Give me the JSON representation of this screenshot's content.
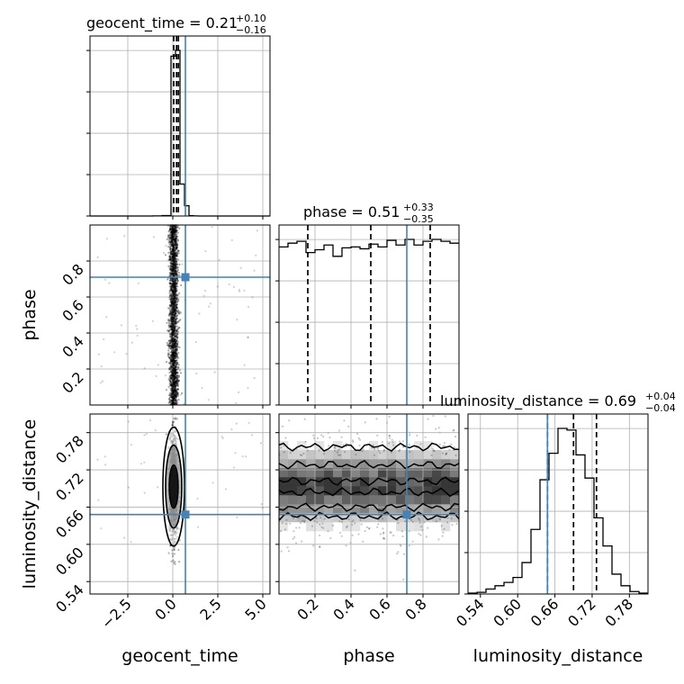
{
  "chart_data": {
    "type": "corner",
    "parameters": [
      "geocent_time",
      "phase",
      "luminosity_distance"
    ],
    "truths": {
      "geocent_time": 0.7,
      "phase": 0.71,
      "luminosity_distance": 0.648
    },
    "grid": true,
    "diagonal": [
      {
        "parameter": "geocent_time",
        "title_main": "geocent_time = 0.21",
        "title_plus": "+0.10",
        "title_minus": "−0.16",
        "xlim": [
          -4.6,
          5.4
        ],
        "quantiles": [
          0.05,
          0.21,
          0.31
        ],
        "hist": {
          "edges": [
            -4.6,
            -4.1,
            -3.6,
            -3.1,
            -2.6,
            -2.1,
            -1.6,
            -1.1,
            -0.6,
            -0.1,
            0.15,
            0.4,
            0.65,
            0.9,
            1.15,
            1.4,
            1.9,
            2.4,
            2.9,
            3.4,
            3.9,
            4.4,
            4.9,
            5.4
          ],
          "counts": [
            0,
            0,
            0,
            0,
            0,
            0,
            0,
            1,
            4,
            1400,
            1450,
            280,
            90,
            3,
            1,
            0,
            0,
            0,
            0,
            0,
            0,
            0,
            0
          ]
        }
      },
      {
        "parameter": "phase",
        "title_main": "phase = 0.51",
        "title_plus": "+0.33",
        "title_minus": "−0.35",
        "xlim": [
          0.0,
          1.0
        ],
        "quantiles": [
          0.16,
          0.51,
          0.84
        ],
        "hist": {
          "edges": [
            0.0,
            0.05,
            0.1,
            0.15,
            0.2,
            0.25,
            0.3,
            0.35,
            0.4,
            0.45,
            0.5,
            0.55,
            0.6,
            0.65,
            0.7,
            0.75,
            0.8,
            0.85,
            0.9,
            0.95,
            1.0
          ],
          "counts": [
            168,
            172,
            174,
            162,
            165,
            170,
            158,
            167,
            168,
            166,
            171,
            168,
            175,
            170,
            176,
            170,
            174,
            176,
            174,
            172
          ]
        }
      },
      {
        "parameter": "luminosity_distance",
        "title_main": "luminosity_distance = 0.69",
        "title_plus": "+0.04",
        "title_minus": "−0.04",
        "xlim": [
          0.52,
          0.81
        ],
        "quantiles": [
          0.648,
          0.69,
          0.727
        ],
        "hist": {
          "edges": [
            0.52,
            0.5345,
            0.549,
            0.5635,
            0.578,
            0.5925,
            0.607,
            0.6215,
            0.636,
            0.6505,
            0.665,
            0.6795,
            0.694,
            0.7085,
            0.723,
            0.7375,
            0.752,
            0.7665,
            0.781,
            0.7955,
            0.81
          ],
          "counts": [
            1,
            2,
            6,
            10,
            14,
            20,
            38,
            78,
            138,
            170,
            200,
            198,
            168,
            140,
            92,
            58,
            24,
            10,
            3,
            1
          ]
        }
      }
    ],
    "panels_2d": [
      {
        "x": "geocent_time",
        "y": "phase",
        "type": "scatter",
        "points_center_x": 0.05,
        "points_spread_x": 0.12,
        "y_range": [
          0.0,
          1.0
        ]
      },
      {
        "x": "geocent_time",
        "y": "luminosity_distance",
        "type": "scatter+contour",
        "center": [
          0.05,
          0.693
        ],
        "sigma": [
          0.12,
          0.04
        ]
      },
      {
        "x": "phase",
        "y": "luminosity_distance",
        "type": "hist2d+contour",
        "center_y": 0.693,
        "sigma_y": 0.04
      }
    ],
    "axes": {
      "geocent_time": {
        "xticks": [
          "−2.5",
          "0.0",
          "2.5",
          "5.0"
        ],
        "xtick_values": [
          -2.5,
          0.0,
          2.5,
          5.0
        ],
        "label": "geocent_time"
      },
      "phase": {
        "ticks": [
          "0.2",
          "0.4",
          "0.6",
          "0.8"
        ],
        "tick_values": [
          0.2,
          0.4,
          0.6,
          0.8
        ],
        "label": "phase"
      },
      "luminosity_distance": {
        "ticks": [
          "0.54",
          "0.60",
          "0.66",
          "0.72",
          "0.78"
        ],
        "tick_values": [
          0.54,
          0.6,
          0.66,
          0.72,
          0.78
        ],
        "label": "luminosity_distance"
      }
    },
    "colors": {
      "truth": "#4682b4",
      "hist": "#000000",
      "grid": "#b0b0b0",
      "quantile": "#000000"
    }
  }
}
